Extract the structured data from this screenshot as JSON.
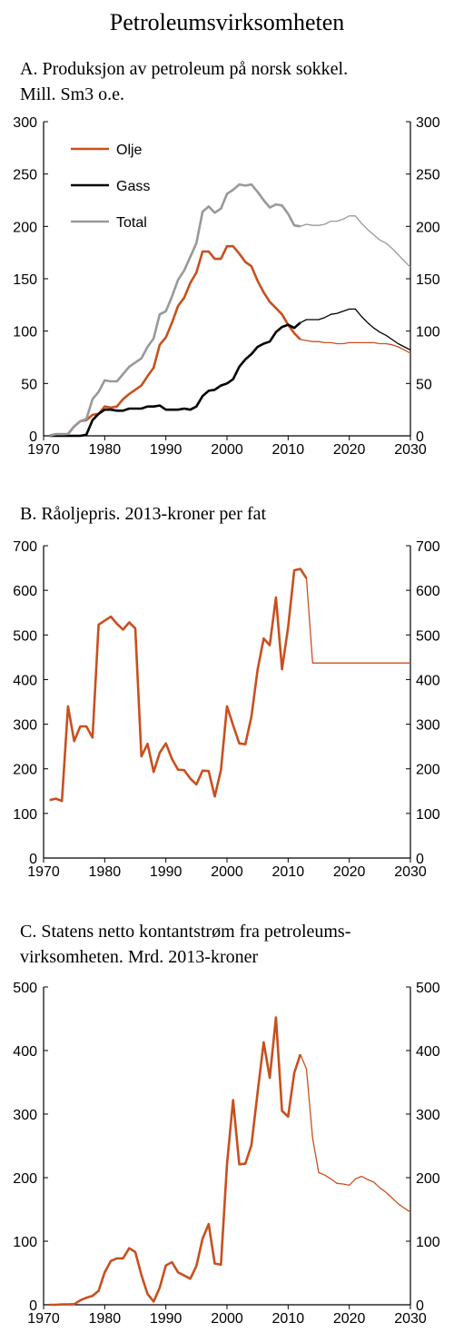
{
  "page_title": "Petroleumsvirksomheten",
  "panels": [
    {
      "title_lines": [
        "A. Produksjon av petroleum på norsk sokkel.",
        "Mill. Sm3 o.e."
      ]
    },
    {
      "title_lines": [
        "B. Råoljepris. 2013-kroner per fat"
      ]
    },
    {
      "title_lines": [
        "C. Statens netto kontantstrøm fra petroleums-",
        "virksomheten. Mrd. 2013-kroner"
      ]
    }
  ],
  "colors": {
    "olje": "#c8501e",
    "gass": "#000000",
    "total": "#999999",
    "axis": "#000000"
  },
  "chart_data": [
    {
      "type": "line",
      "title": "A. Produksjon av petroleum på norsk sokkel. Mill. Sm3 o.e.",
      "xlim": [
        1970,
        2030
      ],
      "ylim": [
        0,
        300
      ],
      "x_ticks": [
        1970,
        1980,
        1990,
        2000,
        2010,
        2020,
        2030
      ],
      "y_ticks": [
        0,
        50,
        100,
        150,
        200,
        250,
        300
      ],
      "legend": {
        "placement": "top-left",
        "entries": [
          "Olje",
          "Gass",
          "Total"
        ]
      },
      "series": [
        {
          "name": "Olje",
          "color": "#c8501e",
          "forecast_from": 2012,
          "x": [
            1971,
            1972,
            1973,
            1974,
            1975,
            1976,
            1977,
            1978,
            1979,
            1980,
            1981,
            1982,
            1983,
            1984,
            1985,
            1986,
            1987,
            1988,
            1989,
            1990,
            1991,
            1992,
            1993,
            1994,
            1995,
            1996,
            1997,
            1998,
            1999,
            2000,
            2001,
            2002,
            2003,
            2004,
            2005,
            2006,
            2007,
            2008,
            2009,
            2010,
            2011,
            2012,
            2013,
            2014,
            2015,
            2016,
            2017,
            2018,
            2019,
            2020,
            2021,
            2022,
            2023,
            2024,
            2025,
            2026,
            2027,
            2028,
            2029,
            2030
          ],
          "y": [
            0.3,
            1.6,
            1.6,
            1.7,
            9,
            14,
            15,
            20,
            21,
            28,
            27,
            28,
            35,
            40,
            44,
            48,
            57,
            65,
            87,
            94,
            108,
            124,
            132,
            146,
            156,
            176,
            176,
            169,
            169,
            181,
            181,
            174,
            166,
            162,
            148,
            137,
            128,
            122,
            116,
            106,
            98,
            92,
            91,
            90,
            90,
            89,
            89,
            88,
            88,
            89,
            89,
            89,
            89,
            89,
            88,
            88,
            87,
            85,
            82,
            79
          ]
        },
        {
          "name": "Gass",
          "color": "#000000",
          "forecast_from": 2012,
          "x": [
            1971,
            1972,
            1973,
            1974,
            1975,
            1976,
            1977,
            1978,
            1979,
            1980,
            1981,
            1982,
            1983,
            1984,
            1985,
            1986,
            1987,
            1988,
            1989,
            1990,
            1991,
            1992,
            1993,
            1994,
            1995,
            1996,
            1997,
            1998,
            1999,
            2000,
            2001,
            2002,
            2003,
            2004,
            2005,
            2006,
            2007,
            2008,
            2009,
            2010,
            2011,
            2012,
            2013,
            2014,
            2015,
            2016,
            2017,
            2018,
            2019,
            2020,
            2021,
            2022,
            2023,
            2024,
            2025,
            2026,
            2027,
            2028,
            2029,
            2030
          ],
          "y": [
            0,
            0,
            0,
            0,
            0,
            0,
            1,
            15,
            21,
            25,
            25,
            24,
            24,
            26,
            26,
            26,
            28,
            28,
            29,
            25,
            25,
            25,
            26,
            25,
            28,
            38,
            43,
            44,
            48,
            50,
            54,
            66,
            73,
            78,
            85,
            88,
            90,
            99,
            104,
            106,
            103,
            108,
            111,
            111,
            111,
            113,
            116,
            117,
            119,
            121,
            121,
            114,
            108,
            103,
            99,
            96,
            92,
            88,
            85,
            82
          ]
        },
        {
          "name": "Total",
          "color": "#999999",
          "forecast_from": 2012,
          "x": [
            1971,
            1972,
            1973,
            1974,
            1975,
            1976,
            1977,
            1978,
            1979,
            1980,
            1981,
            1982,
            1983,
            1984,
            1985,
            1986,
            1987,
            1988,
            1989,
            1990,
            1991,
            1992,
            1993,
            1994,
            1995,
            1996,
            1997,
            1998,
            1999,
            2000,
            2001,
            2002,
            2003,
            2004,
            2005,
            2006,
            2007,
            2008,
            2009,
            2010,
            2011,
            2012,
            2013,
            2014,
            2015,
            2016,
            2017,
            2018,
            2019,
            2020,
            2021,
            2022,
            2023,
            2024,
            2025,
            2026,
            2027,
            2028,
            2029,
            2030
          ],
          "y": [
            0.3,
            1.6,
            1.6,
            1.7,
            9,
            14,
            16,
            35,
            42,
            53,
            52,
            52,
            59,
            66,
            70,
            74,
            85,
            93,
            116,
            119,
            133,
            149,
            158,
            171,
            184,
            214,
            219,
            213,
            217,
            231,
            235,
            240,
            239,
            240,
            233,
            225,
            218,
            221,
            220,
            212,
            201,
            200,
            202,
            201,
            201,
            202,
            205,
            205,
            207,
            210,
            210,
            203,
            197,
            192,
            187,
            184,
            179,
            173,
            167,
            161
          ]
        }
      ]
    },
    {
      "type": "line",
      "title": "B. Råoljepris. 2013-kroner per fat",
      "xlim": [
        1970,
        2030
      ],
      "ylim": [
        0,
        700
      ],
      "x_ticks": [
        1970,
        1980,
        1990,
        2000,
        2010,
        2020,
        2030
      ],
      "y_ticks": [
        0,
        100,
        200,
        300,
        400,
        500,
        600,
        700
      ],
      "series": [
        {
          "name": "",
          "color": "#c8501e",
          "forecast_from": 2013,
          "x": [
            1971,
            1972,
            1973,
            1974,
            1975,
            1976,
            1977,
            1978,
            1979,
            1980,
            1981,
            1982,
            1983,
            1984,
            1985,
            1986,
            1987,
            1988,
            1989,
            1990,
            1991,
            1992,
            1993,
            1994,
            1995,
            1996,
            1997,
            1998,
            1999,
            2000,
            2001,
            2002,
            2003,
            2004,
            2005,
            2006,
            2007,
            2008,
            2009,
            2010,
            2011,
            2012,
            2013,
            2014,
            2015,
            2030
          ],
          "y": [
            130,
            133,
            128,
            340,
            262,
            295,
            295,
            270,
            523,
            532,
            541,
            525,
            512,
            528,
            515,
            228,
            256,
            193,
            236,
            257,
            222,
            198,
            197,
            178,
            165,
            196,
            195,
            138,
            197,
            340,
            298,
            257,
            255,
            317,
            422,
            492,
            477,
            584,
            423,
            517,
            645,
            648,
            627,
            437,
            437,
            437
          ]
        }
      ]
    },
    {
      "type": "line",
      "title": "C. Statens netto kontantstrøm fra petroleumsvirksomheten. Mrd. 2013-kroner",
      "xlim": [
        1970,
        2030
      ],
      "ylim": [
        0,
        500
      ],
      "x_ticks": [
        1970,
        1980,
        1990,
        2000,
        2010,
        2020,
        2030
      ],
      "y_ticks": [
        0,
        100,
        200,
        300,
        400,
        500
      ],
      "series": [
        {
          "name": "",
          "color": "#c8501e",
          "forecast_from": 2012,
          "x": [
            1971,
            1972,
            1973,
            1974,
            1975,
            1976,
            1977,
            1978,
            1979,
            1980,
            1981,
            1982,
            1983,
            1984,
            1985,
            1986,
            1987,
            1988,
            1989,
            1990,
            1991,
            1992,
            1993,
            1994,
            1995,
            1996,
            1997,
            1998,
            1999,
            2000,
            2001,
            2002,
            2003,
            2004,
            2005,
            2006,
            2007,
            2008,
            2009,
            2010,
            2011,
            2012,
            2013,
            2014,
            2015,
            2016,
            2017,
            2018,
            2019,
            2020,
            2021,
            2022,
            2023,
            2024,
            2025,
            2026,
            2027,
            2028,
            2029,
            2030
          ],
          "y": [
            0,
            0,
            0.5,
            0.5,
            1,
            7,
            11,
            14,
            22,
            51,
            69,
            73,
            73,
            89,
            83,
            47,
            17,
            5,
            27,
            62,
            67,
            51,
            46,
            41,
            61,
            104,
            127,
            65,
            63,
            221,
            322,
            221,
            222,
            251,
            334,
            413,
            357,
            452,
            305,
            296,
            365,
            394,
            371,
            262,
            208,
            204,
            198,
            191,
            190,
            188,
            198,
            202,
            197,
            193,
            184,
            177,
            168,
            159,
            152,
            146
          ]
        }
      ]
    }
  ]
}
